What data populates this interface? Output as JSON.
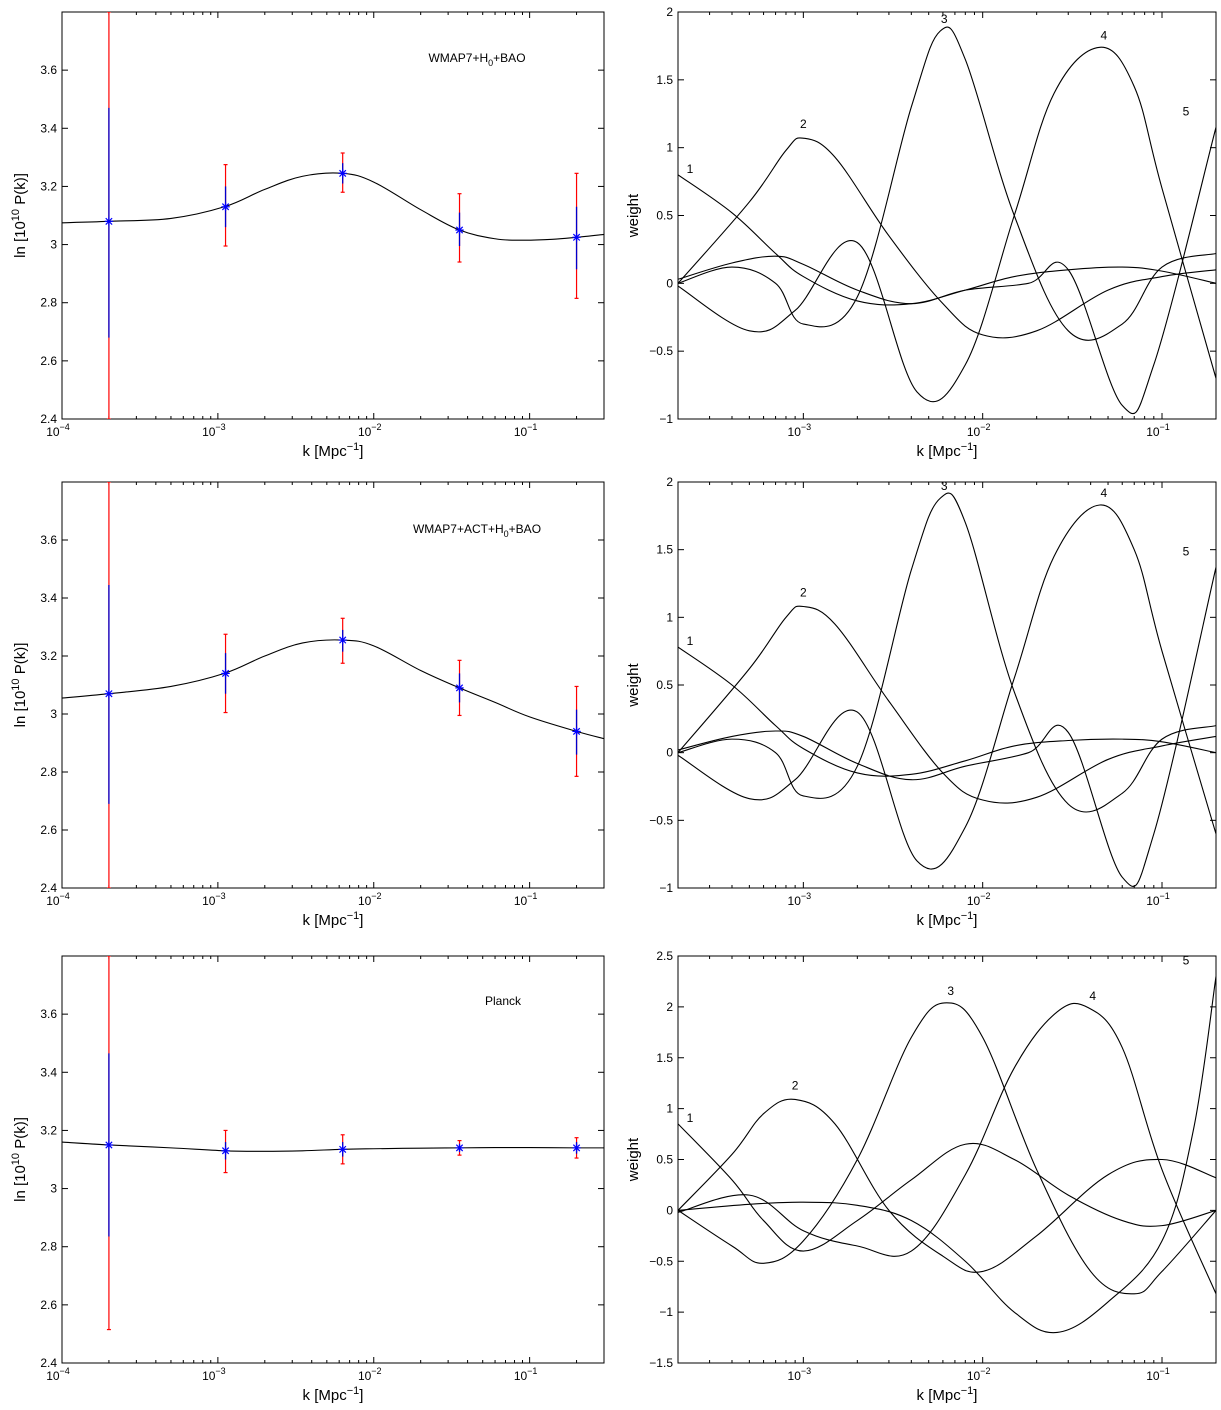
{
  "chart_data": [
    {
      "type": "scatter",
      "panel": "left",
      "annotation": "WMAP7+H₀+BAO",
      "annotation_main": "WMAP7+H",
      "annotation_sub": "0",
      "annotation_tail": "+BAO",
      "xlabel": "k [Mpc⁻¹]",
      "xlabel_main": "k [Mpc",
      "xlabel_sup": "−1",
      "xlabel_tail": "]",
      "ylabel": "ln [10¹⁰ P(k)]",
      "ylabel_main": "ln [10",
      "ylabel_sup": "10",
      "ylabel_tail": " P(k)]",
      "xscale": "log",
      "xlim": [
        0.0001,
        0.3
      ],
      "ylim": [
        2.4,
        3.8
      ],
      "xticks": [
        0.0001,
        0.001,
        0.01,
        0.1
      ],
      "xtick_labels": [
        [
          "10",
          "−4"
        ],
        [
          "10",
          "−3"
        ],
        [
          "10",
          "−2"
        ],
        [
          "10",
          "−1"
        ]
      ],
      "yticks": [
        2.4,
        2.6,
        2.8,
        3,
        3.2,
        3.4,
        3.6
      ],
      "ytick_labels": [
        "2.4",
        "2.6",
        "2.8",
        "3",
        "3.2",
        "3.4",
        "3.6"
      ],
      "points": [
        {
          "k": 0.0002,
          "value": 3.08,
          "err_red": [
            2.4,
            3.8
          ],
          "err_blue": [
            2.68,
            3.47
          ]
        },
        {
          "k": 0.00112,
          "value": 3.13,
          "err_red": [
            2.995,
            3.275
          ],
          "err_blue": [
            3.06,
            3.2
          ]
        },
        {
          "k": 0.00632,
          "value": 3.245,
          "err_red": [
            3.18,
            3.315
          ],
          "err_blue": [
            3.21,
            3.28
          ]
        },
        {
          "k": 0.0355,
          "value": 3.05,
          "err_red": [
            2.94,
            3.175
          ],
          "err_blue": [
            2.995,
            3.11
          ]
        },
        {
          "k": 0.2,
          "value": 3.025,
          "err_red": [
            2.815,
            3.245
          ],
          "err_blue": [
            2.915,
            3.13
          ]
        }
      ],
      "curve": {
        "k": [
          0.0001,
          0.0002,
          0.0005,
          0.0011,
          0.002,
          0.0035,
          0.0063,
          0.01,
          0.02,
          0.0355,
          0.06,
          0.09,
          0.14,
          0.2,
          0.3
        ],
        "value": [
          3.075,
          3.08,
          3.09,
          3.13,
          3.19,
          3.235,
          3.245,
          3.215,
          3.12,
          3.05,
          3.02,
          3.015,
          3.018,
          3.025,
          3.035
        ]
      }
    },
    {
      "type": "line",
      "panel": "right",
      "xlabel": "k [Mpc⁻¹]",
      "xlabel_main": "k [Mpc",
      "xlabel_sup": "−1",
      "xlabel_tail": "]",
      "ylabel": "weight",
      "xscale": "log",
      "xlim": [
        0.0002,
        0.2
      ],
      "ylim": [
        -1,
        2
      ],
      "xticks": [
        0.001,
        0.01,
        0.1
      ],
      "xtick_labels": [
        [
          "10",
          "−3"
        ],
        [
          "10",
          "−2"
        ],
        [
          "10",
          "−1"
        ]
      ],
      "yticks": [
        -1,
        -0.5,
        0,
        0.5,
        1,
        1.5,
        2
      ],
      "ytick_labels": [
        "−1",
        "−0.5",
        "0",
        "0.5",
        "1",
        "1.5",
        "2"
      ],
      "series": [
        {
          "name": "1",
          "x": [
            0.0002,
            0.0004,
            0.0007,
            0.001,
            0.002,
            0.004,
            0.008,
            0.015,
            0.03,
            0.06,
            0.1,
            0.2
          ],
          "y": [
            0.8,
            0.52,
            0.22,
            0.05,
            -0.13,
            -0.15,
            -0.05,
            0.05,
            0.1,
            0.12,
            0.09,
            0.0
          ]
        },
        {
          "name": "2",
          "x": [
            0.0002,
            0.0005,
            0.0008,
            0.001,
            0.0015,
            0.003,
            0.006,
            0.01,
            0.02,
            0.05,
            0.1,
            0.2
          ],
          "y": [
            0.0,
            0.6,
            0.98,
            1.07,
            0.93,
            0.35,
            -0.15,
            -0.38,
            -0.35,
            -0.05,
            0.05,
            0.1
          ]
        },
        {
          "name": "3",
          "x": [
            0.0002,
            0.0004,
            0.0007,
            0.001,
            0.002,
            0.004,
            0.0058,
            0.008,
            0.015,
            0.03,
            0.06,
            0.1,
            0.2
          ],
          "y": [
            0.0,
            0.12,
            0.0,
            -0.3,
            -0.1,
            1.3,
            1.86,
            1.65,
            0.5,
            -0.35,
            -0.3,
            0.12,
            0.22
          ]
        },
        {
          "name": "4",
          "x": [
            0.0002,
            0.0005,
            0.0009,
            0.002,
            0.0043,
            0.008,
            0.015,
            0.025,
            0.045,
            0.07,
            0.1,
            0.2
          ],
          "y": [
            -0.02,
            -0.35,
            -0.2,
            0.3,
            -0.8,
            -0.6,
            0.5,
            1.4,
            1.74,
            1.45,
            0.7,
            -0.7
          ]
        },
        {
          "name": "5",
          "x": [
            0.0002,
            0.0004,
            0.0007,
            0.001,
            0.002,
            0.004,
            0.008,
            0.018,
            0.03,
            0.06,
            0.09,
            0.2
          ],
          "y": [
            0.03,
            0.15,
            0.2,
            0.14,
            -0.05,
            -0.15,
            -0.05,
            0.0,
            0.1,
            -0.9,
            -0.6,
            1.15
          ]
        }
      ]
    },
    {
      "type": "scatter",
      "panel": "left",
      "annotation": "WMAP7+ACT+H₀+BAO",
      "annotation_main": "WMAP7+ACT+H",
      "annotation_sub": "0",
      "annotation_tail": "+BAO",
      "xlabel": "k [Mpc⁻¹]",
      "xlabel_main": "k [Mpc",
      "xlabel_sup": "−1",
      "xlabel_tail": "]",
      "ylabel": "ln [10¹⁰ P(k)]",
      "ylabel_main": "ln [10",
      "ylabel_sup": "10",
      "ylabel_tail": " P(k)]",
      "xscale": "log",
      "xlim": [
        0.0001,
        0.3
      ],
      "ylim": [
        2.4,
        3.8
      ],
      "xticks": [
        0.0001,
        0.001,
        0.01,
        0.1
      ],
      "xtick_labels": [
        [
          "10",
          "−4"
        ],
        [
          "10",
          "−3"
        ],
        [
          "10",
          "−2"
        ],
        [
          "10",
          "−1"
        ]
      ],
      "yticks": [
        2.4,
        2.6,
        2.8,
        3,
        3.2,
        3.4,
        3.6
      ],
      "ytick_labels": [
        "2.4",
        "2.6",
        "2.8",
        "3",
        "3.2",
        "3.4",
        "3.6"
      ],
      "points": [
        {
          "k": 0.0002,
          "value": 3.07,
          "err_red": [
            2.4,
            3.8
          ],
          "err_blue": [
            2.69,
            3.445
          ]
        },
        {
          "k": 0.00112,
          "value": 3.14,
          "err_red": [
            3.005,
            3.275
          ],
          "err_blue": [
            3.07,
            3.21
          ]
        },
        {
          "k": 0.00632,
          "value": 3.255,
          "err_red": [
            3.175,
            3.33
          ],
          "err_blue": [
            3.215,
            3.29
          ]
        },
        {
          "k": 0.0355,
          "value": 3.09,
          "err_red": [
            2.995,
            3.185
          ],
          "err_blue": [
            3.04,
            3.14
          ]
        },
        {
          "k": 0.2,
          "value": 2.94,
          "err_red": [
            2.785,
            3.095
          ],
          "err_blue": [
            2.86,
            3.015
          ]
        }
      ],
      "curve": {
        "k": [
          0.0001,
          0.0002,
          0.0005,
          0.0011,
          0.002,
          0.0035,
          0.0063,
          0.01,
          0.02,
          0.0355,
          0.06,
          0.1,
          0.2,
          0.3
        ],
        "value": [
          3.055,
          3.07,
          3.095,
          3.14,
          3.2,
          3.245,
          3.255,
          3.235,
          3.15,
          3.09,
          3.04,
          2.99,
          2.94,
          2.915
        ]
      }
    },
    {
      "type": "line",
      "panel": "right",
      "xlabel": "k [Mpc⁻¹]",
      "xlabel_main": "k [Mpc",
      "xlabel_sup": "−1",
      "xlabel_tail": "]",
      "ylabel": "weight",
      "xscale": "log",
      "xlim": [
        0.0002,
        0.2
      ],
      "ylim": [
        -1,
        2
      ],
      "xticks": [
        0.001,
        0.01,
        0.1
      ],
      "xtick_labels": [
        [
          "10",
          "−3"
        ],
        [
          "10",
          "−2"
        ],
        [
          "10",
          "−1"
        ]
      ],
      "yticks": [
        -1,
        -0.5,
        0,
        0.5,
        1,
        1.5,
        2
      ],
      "ytick_labels": [
        "−1",
        "−0.5",
        "0",
        "0.5",
        "1",
        "1.5",
        "2"
      ],
      "series": [
        {
          "name": "1",
          "x": [
            0.0002,
            0.0004,
            0.0007,
            0.001,
            0.002,
            0.004,
            0.008,
            0.015,
            0.03,
            0.06,
            0.1,
            0.2
          ],
          "y": [
            0.78,
            0.5,
            0.2,
            0.03,
            -0.15,
            -0.16,
            -0.06,
            0.05,
            0.09,
            0.1,
            0.08,
            0.0
          ]
        },
        {
          "name": "2",
          "x": [
            0.0002,
            0.0005,
            0.0008,
            0.001,
            0.0015,
            0.003,
            0.006,
            0.01,
            0.02,
            0.05,
            0.1,
            0.2
          ],
          "y": [
            0.0,
            0.62,
            1.0,
            1.08,
            0.95,
            0.38,
            -0.15,
            -0.35,
            -0.33,
            -0.05,
            0.05,
            0.12
          ]
        },
        {
          "name": "3",
          "x": [
            0.0002,
            0.0004,
            0.0007,
            0.001,
            0.002,
            0.004,
            0.0058,
            0.008,
            0.015,
            0.03,
            0.06,
            0.1,
            0.2
          ],
          "y": [
            0.0,
            0.1,
            0.0,
            -0.32,
            -0.1,
            1.35,
            1.88,
            1.7,
            0.45,
            -0.38,
            -0.3,
            0.1,
            0.2
          ]
        },
        {
          "name": "4",
          "x": [
            0.0002,
            0.0005,
            0.0009,
            0.002,
            0.0043,
            0.008,
            0.015,
            0.025,
            0.045,
            0.07,
            0.1,
            0.2
          ],
          "y": [
            -0.02,
            -0.34,
            -0.2,
            0.3,
            -0.8,
            -0.55,
            0.55,
            1.45,
            1.83,
            1.5,
            0.75,
            -0.6
          ]
        },
        {
          "name": "5",
          "x": [
            0.0002,
            0.0004,
            0.0007,
            0.001,
            0.002,
            0.004,
            0.008,
            0.018,
            0.03,
            0.06,
            0.09,
            0.2
          ],
          "y": [
            0.02,
            0.12,
            0.16,
            0.12,
            -0.08,
            -0.2,
            -0.1,
            0.0,
            0.15,
            -0.92,
            -0.6,
            1.37
          ]
        }
      ]
    },
    {
      "type": "scatter",
      "panel": "left",
      "annotation": "Planck",
      "annotation_main": "Planck",
      "annotation_sub": "",
      "annotation_tail": "",
      "xlabel": "k [Mpc⁻¹]",
      "xlabel_main": "k [Mpc",
      "xlabel_sup": "−1",
      "xlabel_tail": "]",
      "ylabel": "ln [10¹⁰ P(k)]",
      "ylabel_main": "ln [10",
      "ylabel_sup": "10",
      "ylabel_tail": " P(k)]",
      "xscale": "log",
      "xlim": [
        0.0001,
        0.3
      ],
      "ylim": [
        2.4,
        3.8
      ],
      "xticks": [
        0.0001,
        0.001,
        0.01,
        0.1
      ],
      "xtick_labels": [
        [
          "10",
          "−4"
        ],
        [
          "10",
          "−3"
        ],
        [
          "10",
          "−2"
        ],
        [
          "10",
          "−1"
        ]
      ],
      "yticks": [
        2.4,
        2.6,
        2.8,
        3,
        3.2,
        3.4,
        3.6
      ],
      "ytick_labels": [
        "2.4",
        "2.6",
        "2.8",
        "3",
        "3.2",
        "3.4",
        "3.6"
      ],
      "points": [
        {
          "k": 0.0002,
          "value": 3.15,
          "err_red": [
            2.515,
            3.8
          ],
          "err_blue": [
            2.835,
            3.465
          ]
        },
        {
          "k": 0.00112,
          "value": 3.13,
          "err_red": [
            3.055,
            3.2
          ],
          "err_blue": [
            3.1,
            3.16
          ]
        },
        {
          "k": 0.00632,
          "value": 3.135,
          "err_red": [
            3.085,
            3.185
          ],
          "err_blue": [
            3.11,
            3.16
          ]
        },
        {
          "k": 0.0355,
          "value": 3.14,
          "err_red": [
            3.115,
            3.165
          ],
          "err_blue": [
            3.13,
            3.15
          ]
        },
        {
          "k": 0.2,
          "value": 3.14,
          "err_red": [
            3.105,
            3.175
          ],
          "err_blue": [
            3.12,
            3.16
          ]
        }
      ],
      "curve": {
        "k": [
          0.0001,
          0.0002,
          0.0005,
          0.0011,
          0.002,
          0.0035,
          0.0063,
          0.01,
          0.02,
          0.0355,
          0.06,
          0.1,
          0.2,
          0.3
        ],
        "value": [
          3.16,
          3.15,
          3.14,
          3.13,
          3.128,
          3.13,
          3.135,
          3.137,
          3.139,
          3.14,
          3.141,
          3.141,
          3.14,
          3.14
        ]
      }
    },
    {
      "type": "line",
      "panel": "right",
      "xlabel": "k [Mpc⁻¹]",
      "xlabel_main": "k [Mpc",
      "xlabel_sup": "−1",
      "xlabel_tail": "]",
      "ylabel": "weight",
      "xscale": "log",
      "xlim": [
        0.0002,
        0.2
      ],
      "ylim": [
        -1.5,
        2.5
      ],
      "xticks": [
        0.001,
        0.01,
        0.1
      ],
      "xtick_labels": [
        [
          "10",
          "−3"
        ],
        [
          "10",
          "−2"
        ],
        [
          "10",
          "−1"
        ]
      ],
      "yticks": [
        -1.5,
        -1,
        -0.5,
        0,
        0.5,
        1,
        1.5,
        2,
        2.5
      ],
      "ytick_labels": [
        "−1.5",
        "−1",
        "−0.5",
        "0",
        "0.5",
        "1",
        "1.5",
        "2",
        "2.5"
      ],
      "series": [
        {
          "name": "1",
          "x": [
            0.0002,
            0.0004,
            0.0006,
            0.001,
            0.002,
            0.004,
            0.008,
            0.015,
            0.03,
            0.06,
            0.1,
            0.2
          ],
          "y": [
            0.85,
            0.3,
            -0.1,
            -0.4,
            -0.1,
            0.3,
            0.65,
            0.5,
            0.15,
            -0.1,
            -0.15,
            0.0
          ]
        },
        {
          "name": "2",
          "x": [
            0.0002,
            0.0004,
            0.0006,
            0.0009,
            0.0015,
            0.003,
            0.006,
            0.01,
            0.02,
            0.05,
            0.1,
            0.2
          ],
          "y": [
            0.0,
            0.55,
            0.95,
            1.09,
            0.85,
            0.0,
            -0.45,
            -0.6,
            -0.25,
            0.35,
            0.5,
            0.32
          ]
        },
        {
          "name": "3",
          "x": [
            0.0002,
            0.0004,
            0.0006,
            0.001,
            0.002,
            0.004,
            0.0063,
            0.01,
            0.02,
            0.04,
            0.07,
            0.1,
            0.2
          ],
          "y": [
            0.0,
            -0.35,
            -0.52,
            -0.3,
            0.5,
            1.7,
            2.04,
            1.7,
            0.4,
            -0.6,
            -0.82,
            -0.6,
            0.0
          ]
        },
        {
          "name": "4",
          "x": [
            0.0002,
            0.0005,
            0.001,
            0.002,
            0.004,
            0.008,
            0.015,
            0.026,
            0.039,
            0.06,
            0.1,
            0.2
          ],
          "y": [
            -0.02,
            0.15,
            -0.2,
            -0.35,
            -0.4,
            0.35,
            1.4,
            1.95,
            1.99,
            1.6,
            0.4,
            -0.82
          ]
        },
        {
          "name": "5",
          "x": [
            0.0002,
            0.0005,
            0.001,
            0.002,
            0.004,
            0.008,
            0.015,
            0.026,
            0.05,
            0.1,
            0.15,
            0.2
          ],
          "y": [
            0.0,
            0.06,
            0.08,
            0.05,
            -0.1,
            -0.5,
            -1.0,
            -1.2,
            -0.9,
            -0.3,
            0.8,
            2.3
          ]
        }
      ]
    }
  ]
}
